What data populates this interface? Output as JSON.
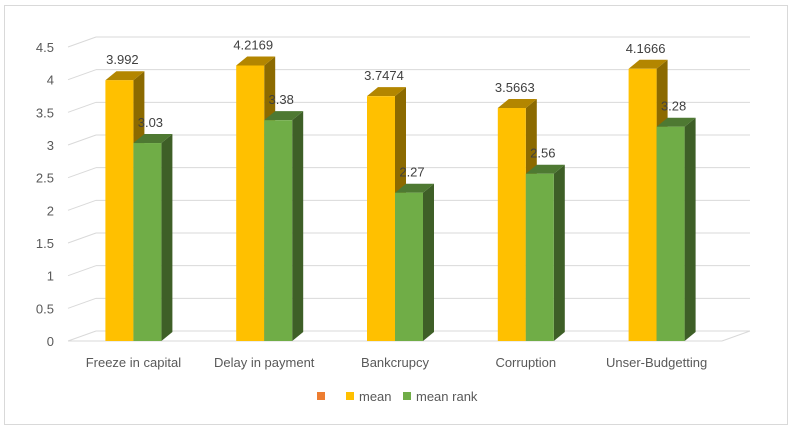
{
  "chart_data": {
    "type": "bar",
    "title": "",
    "xlabel": "",
    "ylabel": "",
    "categories": [
      "Freeze in capital",
      "Delay in payment",
      "Bankcrupcy",
      "Corruption",
      "Unser-Budgetting"
    ],
    "series": [
      {
        "name": "",
        "values": [
          null,
          null,
          null,
          null,
          null
        ],
        "color": "#ED7D31"
      },
      {
        "name": "mean",
        "values": [
          3.992,
          4.2169,
          3.7474,
          3.5663,
          4.1666
        ],
        "color": "#FFC000"
      },
      {
        "name": "mean rank",
        "values": [
          3.03,
          3.38,
          2.27,
          2.56,
          3.28
        ],
        "color": "#70AD47"
      }
    ],
    "data_labels": [
      [
        "3.992",
        "4.2169",
        "3.7474",
        "3.5663",
        "4.1666"
      ],
      [
        "3.03",
        "3.38",
        "2.27",
        "2.56",
        "3.28"
      ]
    ],
    "ylim": [
      0,
      4.5
    ],
    "yticks": [
      "0",
      "0.5",
      "1",
      "1.5",
      "2",
      "2.5",
      "3",
      "3.5",
      "4",
      "4.5"
    ],
    "grid": true,
    "legend": "bottom",
    "style": "3d-column"
  }
}
